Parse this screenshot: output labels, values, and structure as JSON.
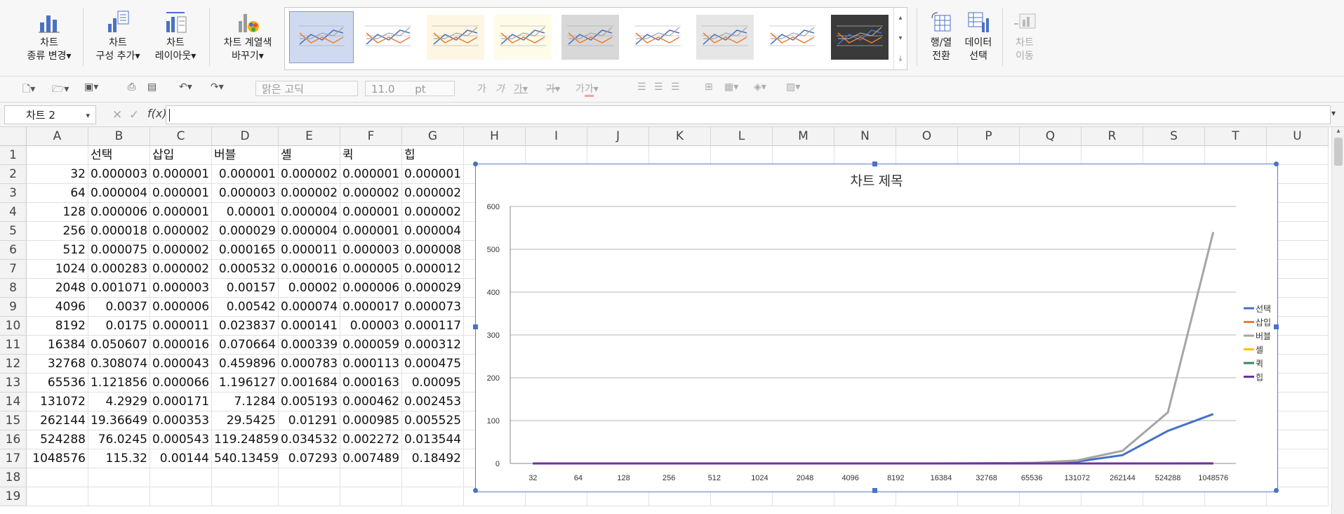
{
  "ribbon": {
    "change_type": [
      "차트",
      "종류 변경"
    ],
    "add_element": [
      "차트",
      "구성 추가"
    ],
    "layout": [
      "차트",
      "레이아웃"
    ],
    "change_colors": [
      "차트 계열색",
      "바꾸기"
    ],
    "switch_row_col": [
      "행/열",
      "전환"
    ],
    "select_data": [
      "데이터",
      "선택"
    ],
    "move_chart": [
      "차트",
      "이동"
    ]
  },
  "toolbar": {
    "font_name": "맑은 고딕",
    "font_size": "11.0",
    "font_unit": "pt"
  },
  "formula_bar": {
    "name_box": "차트 2",
    "fx": "f(x)",
    "value": ""
  },
  "sheet": {
    "columns": [
      "A",
      "B",
      "C",
      "D",
      "E",
      "F",
      "G",
      "H",
      "I",
      "J",
      "K",
      "L",
      "M",
      "N",
      "O",
      "P",
      "Q",
      "R",
      "S",
      "T",
      "U"
    ],
    "rows": [
      "1",
      "2",
      "3",
      "4",
      "5",
      "6",
      "7",
      "8",
      "9",
      "10",
      "11",
      "12",
      "13",
      "14",
      "15",
      "16",
      "17",
      "18",
      "19"
    ],
    "header_row": [
      "",
      "선택",
      "삽입",
      "버블",
      "셸",
      "퀵",
      "힙"
    ],
    "data": [
      [
        "32",
        "0.000003",
        "0.000001",
        "0.000001",
        "0.000002",
        "0.000001",
        "0.000001"
      ],
      [
        "64",
        "0.000004",
        "0.000001",
        "0.000003",
        "0.000002",
        "0.000002",
        "0.000002"
      ],
      [
        "128",
        "0.000006",
        "0.000001",
        "0.00001",
        "0.000004",
        "0.000001",
        "0.000002"
      ],
      [
        "256",
        "0.000018",
        "0.000002",
        "0.000029",
        "0.000004",
        "0.000001",
        "0.000004"
      ],
      [
        "512",
        "0.000075",
        "0.000002",
        "0.000165",
        "0.000011",
        "0.000003",
        "0.000008"
      ],
      [
        "1024",
        "0.000283",
        "0.000002",
        "0.000532",
        "0.000016",
        "0.000005",
        "0.000012"
      ],
      [
        "2048",
        "0.001071",
        "0.000003",
        "0.00157",
        "0.00002",
        "0.000006",
        "0.000029"
      ],
      [
        "4096",
        "0.0037",
        "0.000006",
        "0.00542",
        "0.000074",
        "0.000017",
        "0.000073"
      ],
      [
        "8192",
        "0.0175",
        "0.000011",
        "0.023837",
        "0.000141",
        "0.00003",
        "0.000117"
      ],
      [
        "16384",
        "0.050607",
        "0.000016",
        "0.070664",
        "0.000339",
        "0.000059",
        "0.000312"
      ],
      [
        "32768",
        "0.308074",
        "0.000043",
        "0.459896",
        "0.000783",
        "0.000113",
        "0.000475"
      ],
      [
        "65536",
        "1.121856",
        "0.000066",
        "1.196127",
        "0.001684",
        "0.000163",
        "0.00095"
      ],
      [
        "131072",
        "4.2929",
        "0.000171",
        "7.1284",
        "0.005193",
        "0.000462",
        "0.002453"
      ],
      [
        "262144",
        "19.36649",
        "0.000353",
        "29.5425",
        "0.01291",
        "0.000985",
        "0.005525"
      ],
      [
        "524288",
        "76.0245",
        "0.000543",
        "119.24859",
        "0.034532",
        "0.002272",
        "0.013544"
      ],
      [
        "1048576",
        "115.32",
        "0.00144",
        "540.13459",
        "0.07293",
        "0.007489",
        "0.18492"
      ]
    ]
  },
  "chart_data": {
    "type": "line",
    "title": "차트 제목",
    "categories": [
      "32",
      "64",
      "128",
      "256",
      "512",
      "1024",
      "2048",
      "4096",
      "8192",
      "16384",
      "32768",
      "65536",
      "131072",
      "262144",
      "524288",
      "1048576"
    ],
    "ylim": [
      0,
      600
    ],
    "yticks": [
      "0",
      "100",
      "200",
      "300",
      "400",
      "500",
      "600"
    ],
    "grid": true,
    "legend_position": "right",
    "series": [
      {
        "name": "선택",
        "color": "#4472c4",
        "values": [
          3e-06,
          4e-06,
          6e-06,
          1.8e-05,
          7.5e-05,
          0.000283,
          0.001071,
          0.0037,
          0.0175,
          0.050607,
          0.308074,
          1.121856,
          4.2929,
          19.36649,
          76.0245,
          115.32
        ]
      },
      {
        "name": "삽입",
        "color": "#ed7d31",
        "values": [
          1e-06,
          1e-06,
          1e-06,
          2e-06,
          2e-06,
          2e-06,
          3e-06,
          6e-06,
          1.1e-05,
          1.6e-05,
          4.3e-05,
          6.6e-05,
          0.000171,
          0.000353,
          0.000543,
          0.00144
        ]
      },
      {
        "name": "버블",
        "color": "#a5a5a5",
        "values": [
          1e-06,
          3e-06,
          1e-05,
          2.9e-05,
          0.000165,
          0.000532,
          0.00157,
          0.00542,
          0.023837,
          0.070664,
          0.459896,
          1.196127,
          7.1284,
          29.5425,
          119.24859,
          540.13459
        ]
      },
      {
        "name": "셸",
        "color": "#ffc000",
        "values": [
          2e-06,
          2e-06,
          4e-06,
          4e-06,
          1.1e-05,
          1.6e-05,
          2e-05,
          7.4e-05,
          0.000141,
          0.000339,
          0.000783,
          0.001684,
          0.005193,
          0.01291,
          0.034532,
          0.07293
        ]
      },
      {
        "name": "퀵",
        "color": "#2e8b57",
        "values": [
          1e-06,
          2e-06,
          1e-06,
          1e-06,
          3e-06,
          5e-06,
          6e-06,
          1.7e-05,
          3e-05,
          5.9e-05,
          0.000113,
          0.000163,
          0.000462,
          0.000985,
          0.002272,
          0.007489
        ]
      },
      {
        "name": "힙",
        "color": "#7030a0",
        "values": [
          1e-06,
          2e-06,
          2e-06,
          4e-06,
          8e-06,
          1.2e-05,
          2.9e-05,
          7.3e-05,
          0.000117,
          0.000312,
          0.000475,
          0.00095,
          0.002453,
          0.005525,
          0.013544,
          0.18492
        ]
      }
    ]
  }
}
